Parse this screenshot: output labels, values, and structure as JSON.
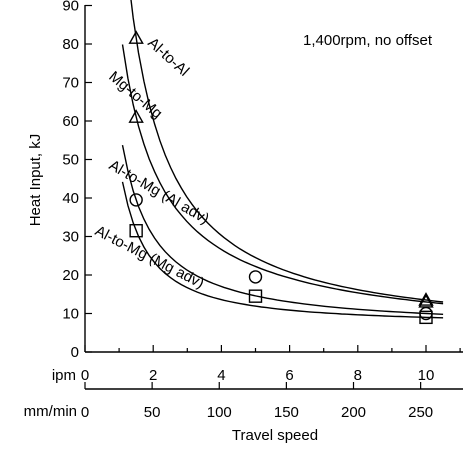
{
  "chart_data": {
    "type": "scatter",
    "title": "",
    "xlabel": "Travel speed",
    "ylabel": "Heat Input, kJ",
    "xlim": [
      0,
      11
    ],
    "ylim": [
      0,
      90
    ],
    "x_ticks": [
      0,
      2,
      4,
      6,
      8,
      10
    ],
    "y_ticks": [
      0,
      10,
      20,
      30,
      40,
      50,
      60,
      70,
      80,
      90
    ],
    "x_unit_primary": "ipm",
    "x_unit_secondary": "mm/min",
    "x_ticks_secondary": [
      0,
      50,
      100,
      150,
      200,
      250
    ],
    "mm_per_inch": 25.4,
    "annotation": "1,400rpm, no offset",
    "grid": false,
    "series": [
      {
        "name": "Al-to-Al",
        "marker": "triangle",
        "x": [
          1.5,
          10
        ],
        "y": [
          81.5,
          13.5
        ],
        "fit_x": [
          1.1,
          10.5
        ],
        "fit_exp": 1.1
      },
      {
        "name": "Mg-to-Mg",
        "marker": "triangle",
        "x": [
          1.5,
          10
        ],
        "y": [
          61,
          13
        ],
        "fit_x": [
          1.1,
          10.5
        ],
        "fit_exp": 0.9
      },
      {
        "name": "Al-to-Mg (Al adv)",
        "marker": "circle",
        "x": [
          1.5,
          5,
          10
        ],
        "y": [
          39.5,
          19.5,
          10
        ],
        "fit_x": [
          1.1,
          10.5
        ],
        "fit_exp": 1.15
      },
      {
        "name": "Al-to-Mg (Mg adv)",
        "marker": "square",
        "x": [
          1.5,
          5,
          10
        ],
        "y": [
          31.5,
          14.5,
          9
        ],
        "fit_x": [
          1.1,
          10.5
        ],
        "fit_exp": 1.35
      }
    ]
  }
}
